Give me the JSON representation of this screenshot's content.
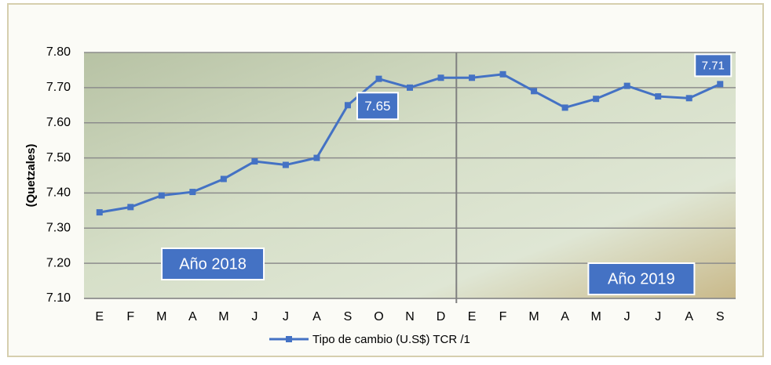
{
  "chart_data": {
    "type": "line",
    "y_label": "(Quetzales)",
    "categories": [
      "E",
      "F",
      "M",
      "A",
      "M",
      "J",
      "J",
      "A",
      "S",
      "O",
      "N",
      "D",
      "E",
      "F",
      "M",
      "A",
      "M",
      "J",
      "J",
      "A",
      "S"
    ],
    "series": [
      {
        "name": "Tipo de cambio (U.S$) TCR /1",
        "color": "#4472c4",
        "values": [
          7.345,
          7.36,
          7.393,
          7.403,
          7.44,
          7.49,
          7.48,
          7.5,
          7.65,
          7.725,
          7.7,
          7.728,
          7.728,
          7.738,
          7.69,
          7.643,
          7.668,
          7.705,
          7.675,
          7.67,
          7.71
        ],
        "value_labels": [
          null,
          null,
          null,
          null,
          null,
          null,
          null,
          null,
          "7.65",
          null,
          null,
          null,
          null,
          null,
          null,
          null,
          null,
          null,
          null,
          null,
          "7.71"
        ]
      }
    ],
    "ylim": [
      7.1,
      7.8
    ],
    "yticks": [
      {
        "value": 7.1,
        "label": "7.10"
      },
      {
        "value": 7.2,
        "label": "7.20"
      },
      {
        "value": 7.3,
        "label": "7.30"
      },
      {
        "value": 7.4,
        "label": "7.40"
      },
      {
        "value": 7.5,
        "label": "7.50"
      },
      {
        "value": 7.6,
        "label": "7.60"
      },
      {
        "value": 7.7,
        "label": "7.70"
      },
      {
        "value": 7.8,
        "label": "7.80"
      }
    ],
    "grid": true,
    "annotations": [
      "Año 2018",
      "Año 2019"
    ],
    "legend": "bottom"
  }
}
